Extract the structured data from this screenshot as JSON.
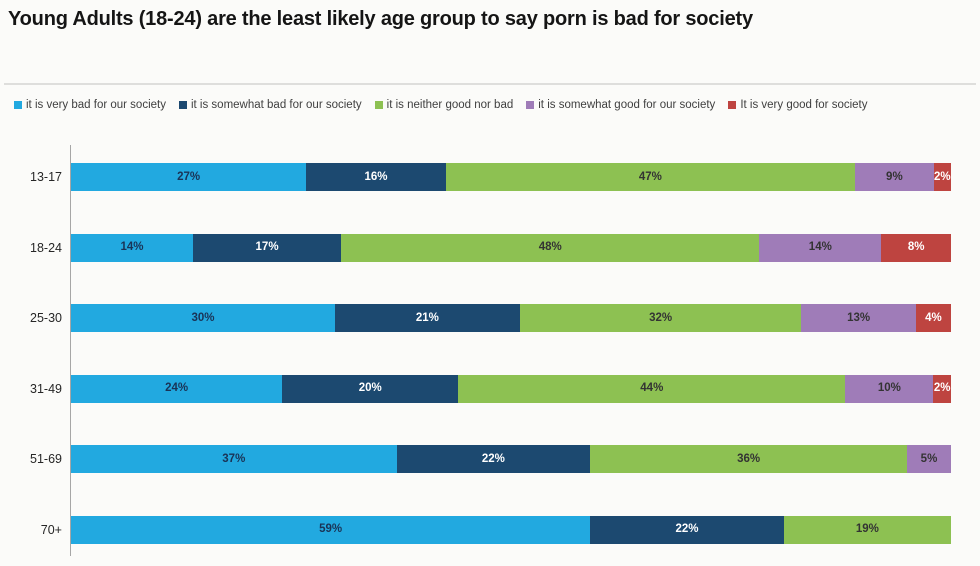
{
  "title": "Young Adults (18-24) are the least likely age group to say porn is bad for society",
  "chart_data": {
    "type": "bar",
    "orientation": "horizontal",
    "stacked": true,
    "normalized_100_percent": true,
    "grid": false,
    "legend_position": "top",
    "value_suffix": "%",
    "axis_line_color": "#a6a6a6",
    "background_color": "#fbfbf9",
    "categories": [
      "13-17",
      "18-24",
      "25-30",
      "31-49",
      "51-69",
      "70+"
    ],
    "series": [
      {
        "name": "it is very bad for our society",
        "color": "#22a9e0",
        "label_color": "#1a3356",
        "values": [
          27,
          14,
          30,
          24,
          37,
          59
        ]
      },
      {
        "name": "it is somewhat bad for our society",
        "color": "#1c4970",
        "label_color": "#ffffff",
        "values": [
          16,
          17,
          21,
          20,
          22,
          22
        ]
      },
      {
        "name": "it is neither good nor bad",
        "color": "#8dc152",
        "label_color": "#333333",
        "values": [
          47,
          48,
          32,
          44,
          36,
          19
        ]
      },
      {
        "name": "it is somewhat good for our society",
        "color": "#9f7cb8",
        "label_color": "#333333",
        "values": [
          9,
          14,
          13,
          10,
          5,
          0
        ]
      },
      {
        "name": "It is very good for society",
        "color": "#be4440",
        "label_color": "#ffffff",
        "values": [
          2,
          8,
          4,
          2,
          0,
          0
        ]
      }
    ]
  }
}
